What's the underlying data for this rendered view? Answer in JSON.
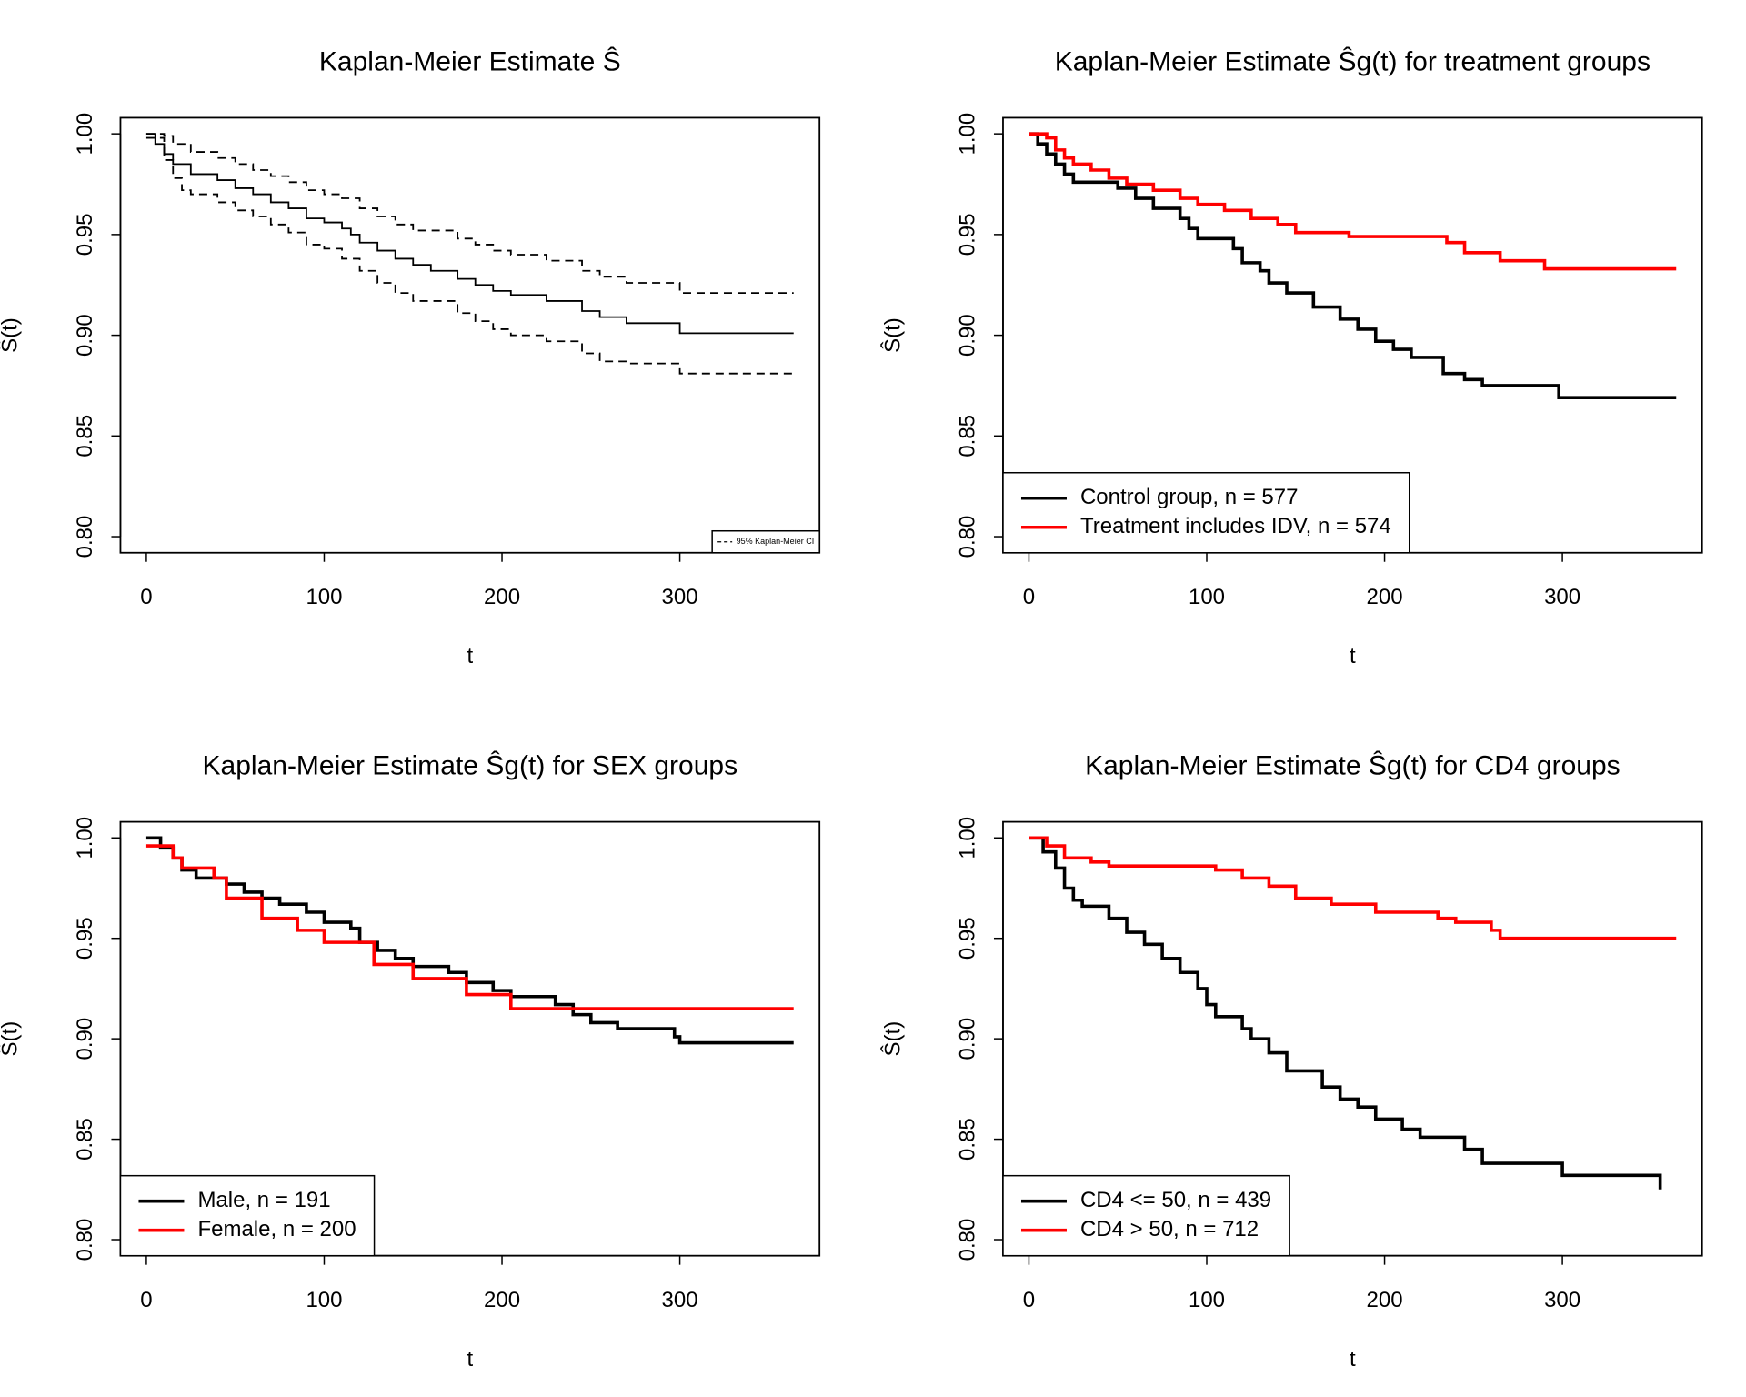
{
  "chart_data": [
    {
      "type": "line",
      "title": "Kaplan-Meier Estimate Ŝ",
      "xlabel": "t",
      "ylabel": "Ŝ(t)",
      "xlim": [
        -14.56,
        378.56
      ],
      "ylim": [
        0.792,
        1.008
      ],
      "xticks": [
        0,
        100,
        200,
        300
      ],
      "yticks": [
        {
          "value": 0.8,
          "label": "0.80"
        },
        0.85,
        {
          "value": 0.9,
          "label": "0.90"
        },
        0.95,
        {
          "value": 1.0,
          "label": "1.00"
        }
      ],
      "legend": "bottom-right",
      "series": [
        {
          "color": "#000000",
          "x": [
            0,
            5,
            10,
            15,
            25,
            40,
            50,
            60,
            70,
            80,
            90,
            100,
            110,
            115,
            120,
            130,
            140,
            150,
            160,
            175,
            185,
            195,
            205,
            225,
            245,
            255,
            270,
            300,
            364
          ],
          "values": [
            1.0,
            0.995,
            0.99,
            0.985,
            0.98,
            0.977,
            0.973,
            0.97,
            0.966,
            0.963,
            0.958,
            0.956,
            0.953,
            0.95,
            0.946,
            0.942,
            0.938,
            0.935,
            0.932,
            0.928,
            0.925,
            0.922,
            0.92,
            0.917,
            0.912,
            0.909,
            0.906,
            0.901,
            0.901
          ]
        },
        {
          "name": "95% Kaplan-Meier CI",
          "color": "#000000",
          "dash": true,
          "x": [
            0,
            10,
            15,
            25,
            40,
            50,
            60,
            70,
            80,
            90,
            100,
            110,
            120,
            130,
            140,
            150,
            175,
            185,
            195,
            205,
            225,
            245,
            255,
            270,
            300,
            364
          ],
          "values": [
            1.0,
            0.999,
            0.995,
            0.991,
            0.988,
            0.985,
            0.982,
            0.979,
            0.976,
            0.972,
            0.97,
            0.968,
            0.963,
            0.959,
            0.955,
            0.952,
            0.948,
            0.945,
            0.942,
            0.94,
            0.937,
            0.932,
            0.929,
            0.926,
            0.921,
            0.921
          ]
        },
        {
          "color": "#000000",
          "dash": true,
          "x": [
            0,
            10,
            15,
            20,
            25,
            40,
            50,
            60,
            70,
            80,
            90,
            100,
            110,
            120,
            130,
            140,
            150,
            175,
            185,
            195,
            205,
            225,
            245,
            255,
            270,
            300,
            364
          ],
          "values": [
            0.998,
            0.987,
            0.978,
            0.972,
            0.97,
            0.966,
            0.962,
            0.959,
            0.955,
            0.951,
            0.945,
            0.943,
            0.938,
            0.932,
            0.926,
            0.921,
            0.917,
            0.911,
            0.907,
            0.903,
            0.9,
            0.897,
            0.891,
            0.887,
            0.886,
            0.881,
            0.881
          ]
        }
      ]
    },
    {
      "type": "line",
      "title": "Kaplan-Meier Estimate Ŝg(t) for treatment groups",
      "xlabel": "t",
      "ylabel": "Ŝ(t)",
      "xlim": [
        -14.56,
        378.56
      ],
      "ylim": [
        0.792,
        1.008
      ],
      "xticks": [
        0,
        100,
        200,
        300
      ],
      "yticks": [
        {
          "value": 0.8,
          "label": "0.80"
        },
        0.85,
        {
          "value": 0.9,
          "label": "0.90"
        },
        0.95,
        {
          "value": 1.0,
          "label": "1.00"
        }
      ],
      "legend": "bottom-left",
      "series": [
        {
          "name": "Control group, n = 577",
          "color": "#000000",
          "x": [
            0,
            5,
            10,
            15,
            20,
            25,
            50,
            60,
            70,
            85,
            90,
            95,
            115,
            120,
            130,
            135,
            145,
            160,
            175,
            185,
            195,
            205,
            215,
            233,
            245,
            255,
            298,
            364
          ],
          "values": [
            1.0,
            0.995,
            0.99,
            0.985,
            0.98,
            0.976,
            0.973,
            0.968,
            0.963,
            0.958,
            0.953,
            0.948,
            0.943,
            0.936,
            0.932,
            0.926,
            0.921,
            0.914,
            0.908,
            0.903,
            0.897,
            0.893,
            0.889,
            0.881,
            0.878,
            0.875,
            0.869,
            0.869
          ]
        },
        {
          "name": "Treatment includes IDV, n = 574",
          "color": "#ff0000",
          "x": [
            0,
            10,
            15,
            20,
            25,
            35,
            45,
            55,
            70,
            85,
            95,
            110,
            125,
            140,
            150,
            180,
            235,
            245,
            265,
            290,
            364
          ],
          "values": [
            1.0,
            0.998,
            0.992,
            0.988,
            0.985,
            0.982,
            0.978,
            0.975,
            0.972,
            0.968,
            0.965,
            0.962,
            0.958,
            0.955,
            0.951,
            0.949,
            0.946,
            0.941,
            0.937,
            0.933,
            0.933
          ]
        }
      ]
    },
    {
      "type": "line",
      "title": "Kaplan-Meier Estimate Ŝg(t) for SEX groups",
      "xlabel": "t",
      "ylabel": "Ŝ(t)",
      "xlim": [
        -14.56,
        378.56
      ],
      "ylim": [
        0.792,
        1.008
      ],
      "xticks": [
        0,
        100,
        200,
        300
      ],
      "yticks": [
        {
          "value": 0.8,
          "label": "0.80"
        },
        0.85,
        {
          "value": 0.9,
          "label": "0.90"
        },
        0.95,
        {
          "value": 1.0,
          "label": "1.00"
        }
      ],
      "legend": "bottom-left",
      "series": [
        {
          "name": "Male, n = 191",
          "color": "#000000",
          "x": [
            0,
            8,
            15,
            20,
            28,
            45,
            55,
            65,
            75,
            90,
            100,
            115,
            120,
            130,
            140,
            150,
            170,
            180,
            195,
            205,
            230,
            240,
            250,
            265,
            297,
            300,
            364
          ],
          "values": [
            1.0,
            0.995,
            0.99,
            0.984,
            0.98,
            0.977,
            0.973,
            0.97,
            0.967,
            0.963,
            0.958,
            0.955,
            0.948,
            0.944,
            0.94,
            0.936,
            0.933,
            0.928,
            0.924,
            0.921,
            0.917,
            0.912,
            0.908,
            0.905,
            0.901,
            0.898,
            0.898
          ]
        },
        {
          "name": "Female, n = 200",
          "color": "#ff0000",
          "x": [
            0,
            15,
            20,
            38,
            45,
            65,
            85,
            100,
            128,
            150,
            180,
            205,
            364
          ],
          "values": [
            0.996,
            0.99,
            0.985,
            0.98,
            0.97,
            0.96,
            0.954,
            0.948,
            0.937,
            0.93,
            0.922,
            0.915,
            0.915
          ]
        }
      ]
    },
    {
      "type": "line",
      "title": "Kaplan-Meier Estimate Ŝg(t) for CD4 groups",
      "xlabel": "t",
      "ylabel": "Ŝ(t)",
      "xlim": [
        -14.56,
        378.56
      ],
      "ylim": [
        0.792,
        1.008
      ],
      "xticks": [
        0,
        100,
        200,
        300
      ],
      "yticks": [
        {
          "value": 0.8,
          "label": "0.80"
        },
        0.85,
        {
          "value": 0.9,
          "label": "0.90"
        },
        0.95,
        {
          "value": 1.0,
          "label": "1.00"
        }
      ],
      "legend": "bottom-left",
      "series": [
        {
          "name": "CD4 <= 50, n = 439",
          "color": "#000000",
          "x": [
            0,
            8,
            15,
            20,
            25,
            30,
            45,
            55,
            65,
            75,
            85,
            95,
            100,
            105,
            120,
            125,
            135,
            145,
            165,
            175,
            185,
            195,
            210,
            220,
            245,
            255,
            300,
            355
          ],
          "values": [
            1.0,
            0.993,
            0.985,
            0.975,
            0.969,
            0.966,
            0.96,
            0.953,
            0.947,
            0.94,
            0.933,
            0.925,
            0.917,
            0.911,
            0.905,
            0.9,
            0.893,
            0.884,
            0.876,
            0.87,
            0.866,
            0.86,
            0.855,
            0.851,
            0.845,
            0.838,
            0.832,
            0.825
          ]
        },
        {
          "name": "CD4 > 50, n = 712",
          "color": "#ff0000",
          "x": [
            0,
            10,
            20,
            35,
            45,
            80,
            105,
            120,
            135,
            150,
            170,
            195,
            230,
            240,
            260,
            265,
            364
          ],
          "values": [
            1.0,
            0.996,
            0.99,
            0.988,
            0.986,
            0.986,
            0.984,
            0.98,
            0.976,
            0.97,
            0.967,
            0.963,
            0.96,
            0.958,
            0.954,
            0.95,
            0.95
          ]
        }
      ]
    }
  ]
}
